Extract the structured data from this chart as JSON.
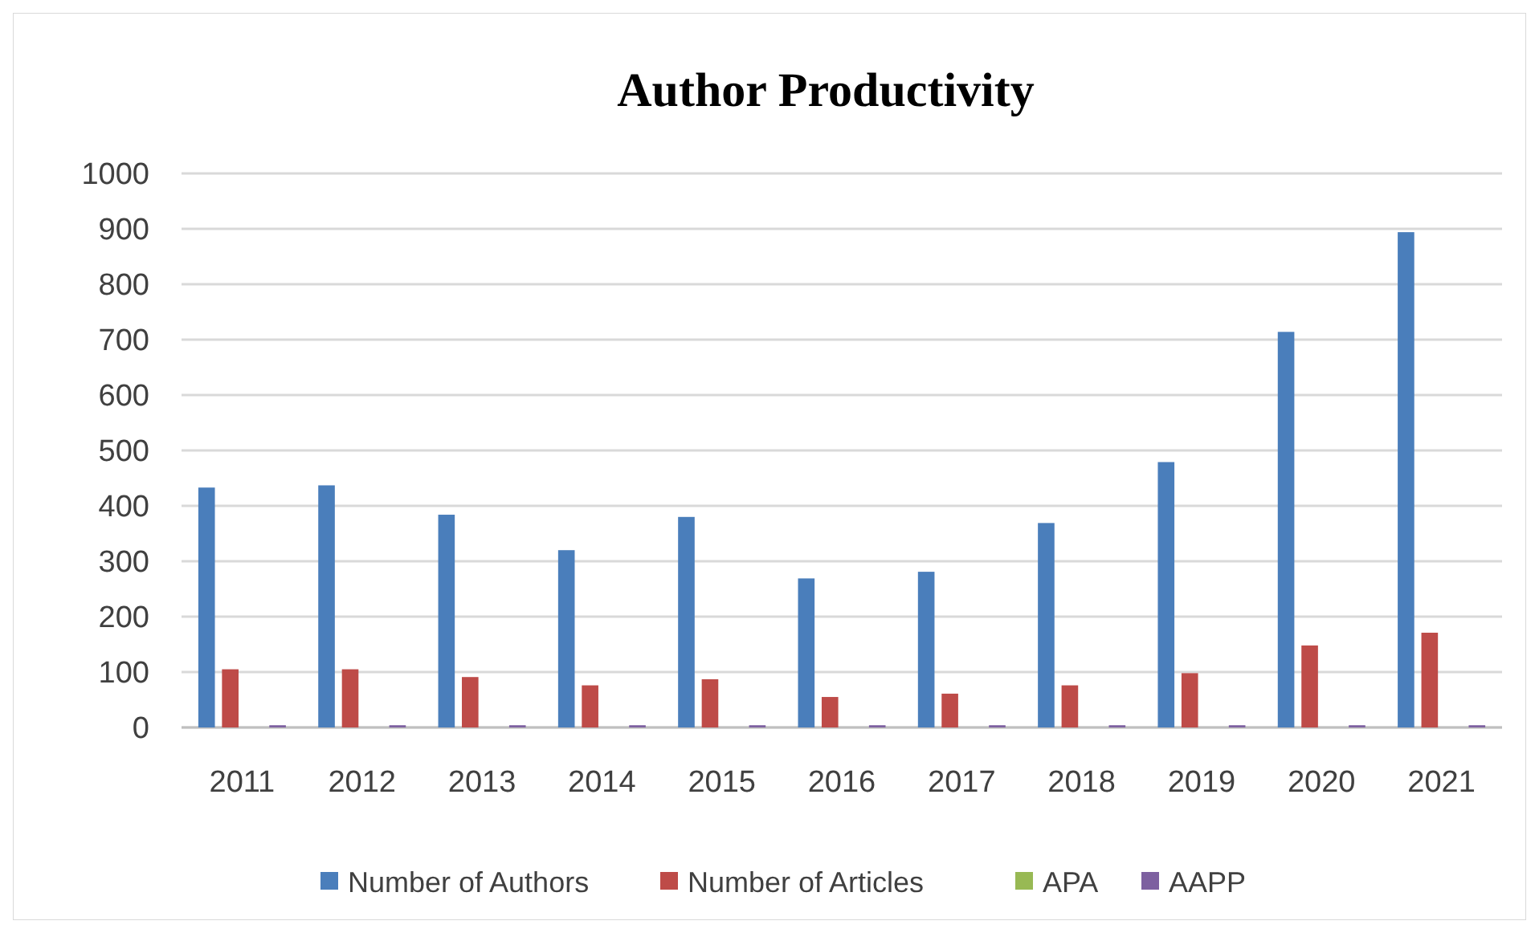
{
  "chart_data": {
    "type": "bar",
    "title": "Author Productivity",
    "categories": [
      "2011",
      "2012",
      "2013",
      "2014",
      "2015",
      "2016",
      "2017",
      "2018",
      "2019",
      "2020",
      "2021"
    ],
    "series": [
      {
        "name": "Number of Authors",
        "color": "#4a7ebb",
        "values": [
          433,
          437,
          384,
          320,
          380,
          269,
          281,
          369,
          479,
          714,
          894
        ]
      },
      {
        "name": "Number of Articles",
        "color": "#be4b48",
        "values": [
          105,
          105,
          91,
          76,
          87,
          55,
          61,
          76,
          98,
          148,
          171
        ]
      },
      {
        "name": "APA",
        "color": "#98b954",
        "values": [
          null,
          null,
          null,
          null,
          null,
          null,
          null,
          null,
          null,
          null,
          null
        ]
      },
      {
        "name": "AAPP",
        "color": "#7d60a0",
        "values": [
          4,
          4,
          4,
          4,
          4,
          4,
          4,
          4,
          4,
          4,
          4
        ]
      }
    ],
    "ylim": [
      0,
      1000
    ],
    "yticks": [
      0,
      100,
      200,
      300,
      400,
      500,
      600,
      700,
      800,
      900,
      1000
    ],
    "grid": "y",
    "legend": "bottom"
  }
}
